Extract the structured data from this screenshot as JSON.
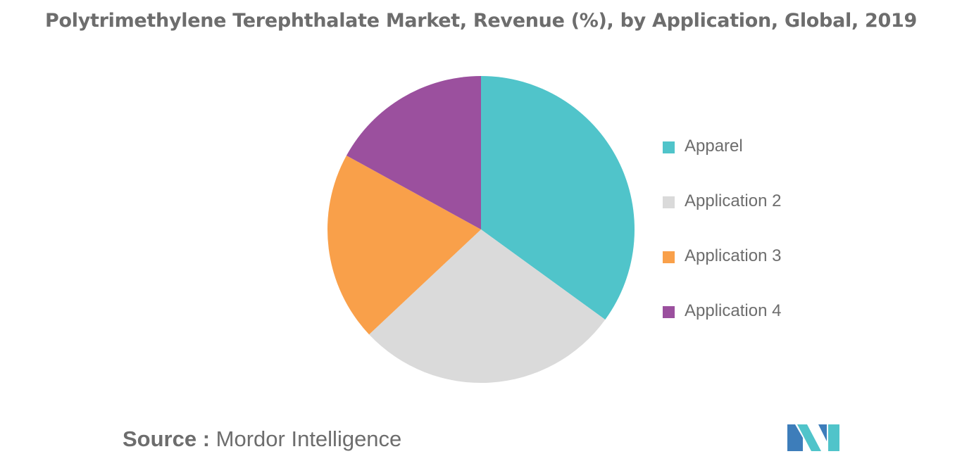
{
  "chart_data": {
    "type": "pie",
    "title": "Polytrimethylene Terephthalate Market, Revenue (%), by Application, Global, 2019",
    "categories": [
      "Apparel",
      "Application 2",
      "Application 3",
      "Application 4"
    ],
    "values": [
      35,
      28,
      20,
      17
    ],
    "colors": [
      "#50c4ca",
      "#dadada",
      "#f9a04a",
      "#9b509e"
    ],
    "legend_position": "right"
  },
  "source": {
    "label": "Source :",
    "text": "Mordor Intelligence"
  },
  "logo": {
    "icon": "mordor-intelligence-logo-icon",
    "colors": [
      "#3d7dba",
      "#50c4ca"
    ]
  }
}
